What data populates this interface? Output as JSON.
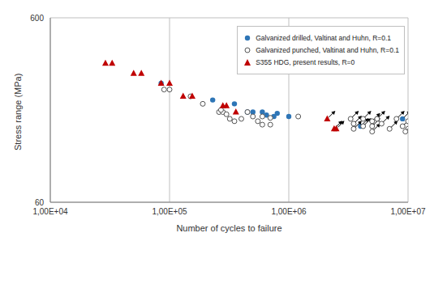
{
  "chart_data": {
    "type": "scatter",
    "x_label": "Number of cycles to failure",
    "y_label": "Stress range (MPa)",
    "log": true,
    "grid": true,
    "legend": "top-right",
    "xlim": [
      10000,
      10000000
    ],
    "xticks": [
      {
        "value": 10000,
        "label": "1,00E+04"
      },
      {
        "value": 100000,
        "label": "1,00E+05"
      },
      {
        "value": 1000000,
        "label": "1,00E+06"
      },
      {
        "value": 10000000,
        "label": "1,00E+07"
      }
    ],
    "ylim": [
      60,
      600
    ],
    "yticks": [
      60,
      600
    ],
    "series": [
      {
        "name": "Galvanized drilled,  Valtinat and Huhn, R=0.1",
        "color": "#2e75b6",
        "marker": "circle",
        "x": [
          85000,
          230000,
          350000,
          450000,
          500000,
          600000,
          650000,
          750000,
          800000,
          1000000,
          4000000,
          9000000
        ],
        "values": [
          265,
          215,
          205,
          185,
          185,
          185,
          178,
          175,
          182,
          175,
          155,
          170
        ],
        "runout": [
          false,
          false,
          false,
          false,
          false,
          false,
          false,
          false,
          false,
          false,
          true,
          true
        ]
      },
      {
        "name": "Galvanized punched, Valtinat and Huhn, R=0.1",
        "color": "#555555",
        "marker": "open_circle",
        "x": [
          90000,
          100000,
          150000,
          190000,
          260000,
          280000,
          300000,
          270000,
          320000,
          350000,
          400000,
          450000,
          500000,
          550000,
          600000,
          700000,
          600000,
          700000,
          1200000,
          3300000,
          3500000,
          3500000,
          4200000,
          4200000,
          5000000,
          5000000,
          5000000,
          5500000,
          6000000,
          7000000,
          8000000,
          9000000,
          10000000,
          10000000,
          9500000
        ],
        "values": [
          245,
          245,
          225,
          205,
          185,
          185,
          180,
          190,
          170,
          165,
          170,
          185,
          175,
          165,
          158,
          158,
          175,
          172,
          175,
          170,
          160,
          150,
          170,
          155,
          165,
          155,
          145,
          170,
          160,
          150,
          170,
          155,
          165,
          150,
          145
        ],
        "runout": [
          false,
          false,
          false,
          false,
          false,
          false,
          false,
          false,
          false,
          false,
          false,
          false,
          false,
          false,
          false,
          false,
          false,
          false,
          false,
          true,
          true,
          true,
          true,
          true,
          true,
          true,
          true,
          true,
          true,
          true,
          true,
          true,
          true,
          true,
          true
        ]
      },
      {
        "name": "S355 HDG, present results, R=0",
        "color": "#c00000",
        "marker": "triangle",
        "x": [
          29000,
          33000,
          50000,
          58000,
          85000,
          100000,
          130000,
          155000,
          280000,
          300000,
          360000,
          2100000,
          2400000,
          2500000
        ],
        "values": [
          340,
          340,
          300,
          300,
          265,
          265,
          225,
          225,
          200,
          200,
          185,
          170,
          150,
          150
        ],
        "runout": [
          false,
          false,
          false,
          false,
          false,
          false,
          false,
          false,
          false,
          false,
          false,
          true,
          true,
          true
        ]
      }
    ]
  }
}
